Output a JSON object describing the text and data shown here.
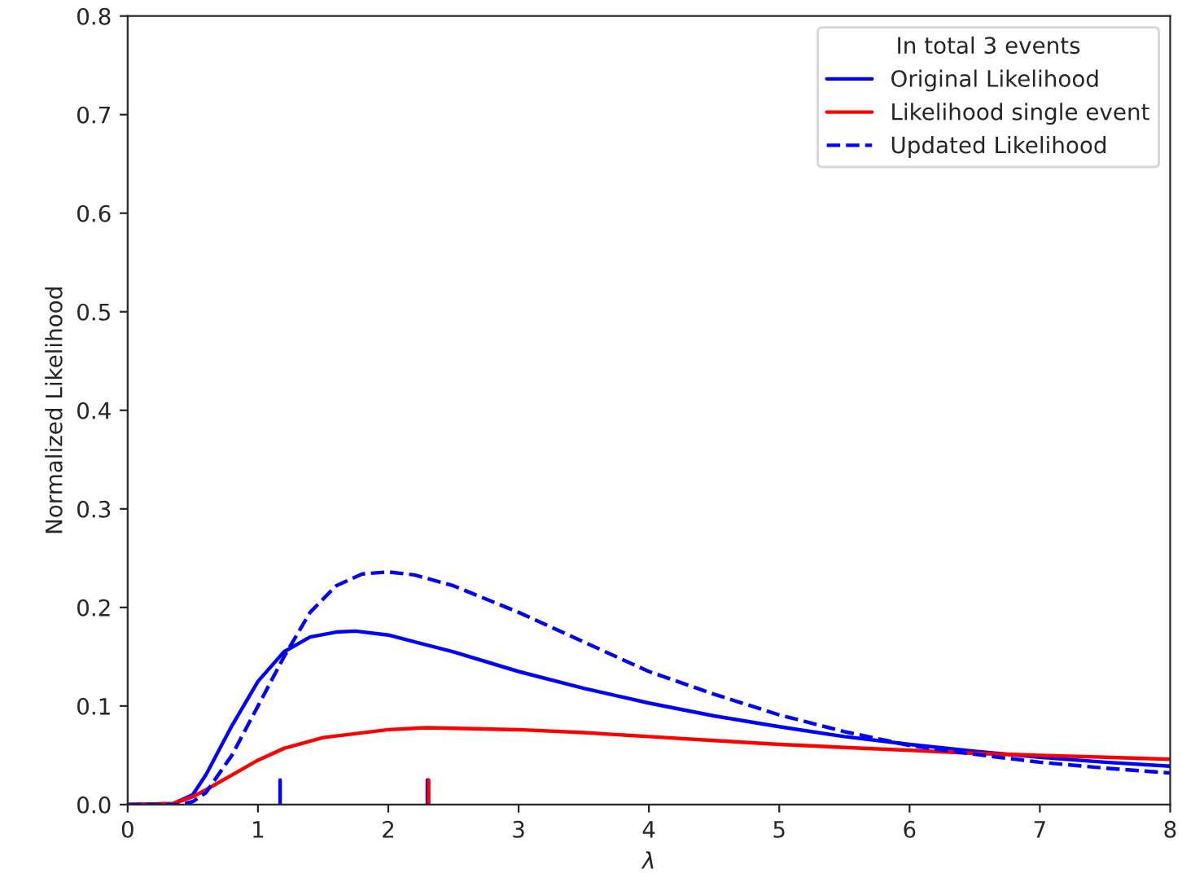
{
  "chart_data": {
    "type": "line",
    "xlabel": "λ",
    "ylabel": "Normalized Likelihood",
    "legend_title": "In total 3 events",
    "legend": "top right",
    "grid": false,
    "xlim": [
      0,
      8
    ],
    "ylim": [
      0,
      0.8
    ],
    "xticks": [
      0,
      1,
      2,
      3,
      4,
      5,
      6,
      7,
      8
    ],
    "yticks": [
      {
        "value": 0,
        "label": "0.0"
      },
      0.1,
      0.2,
      0.3,
      0.4,
      0.5,
      0.6,
      0.7,
      0.8
    ],
    "series": [
      {
        "name": "Original Likelihood",
        "color": "#0000ff",
        "line_style": "solid",
        "x": [
          0,
          0.35,
          0.5,
          0.6,
          0.8,
          1.0,
          1.2,
          1.4,
          1.6,
          1.75,
          2.0,
          2.5,
          3.0,
          3.5,
          4.0,
          4.5,
          5.0,
          5.5,
          6.0,
          6.5,
          7.0,
          7.5,
          8.0
        ],
        "values": [
          0,
          0.001,
          0.01,
          0.03,
          0.08,
          0.125,
          0.155,
          0.17,
          0.175,
          0.176,
          0.172,
          0.155,
          0.135,
          0.118,
          0.103,
          0.09,
          0.079,
          0.069,
          0.061,
          0.054,
          0.048,
          0.043,
          0.039
        ]
      },
      {
        "name": "Likelihood single event",
        "color": "#ff0000",
        "line_style": "solid",
        "x": [
          0,
          0.35,
          0.5,
          0.6,
          0.8,
          1.0,
          1.2,
          1.5,
          2.0,
          2.3,
          3.0,
          3.5,
          4.0,
          4.5,
          5.0,
          5.5,
          6.0,
          6.5,
          7.0,
          7.5,
          8.0
        ],
        "values": [
          0,
          0.001,
          0.008,
          0.015,
          0.03,
          0.045,
          0.057,
          0.068,
          0.076,
          0.078,
          0.076,
          0.073,
          0.069,
          0.065,
          0.061,
          0.058,
          0.055,
          0.052,
          0.05,
          0.048,
          0.046
        ]
      },
      {
        "name": "Updated Likelihood",
        "color": "#0000ff",
        "line_style": "dashed",
        "x": [
          0,
          0.4,
          0.5,
          0.6,
          0.8,
          1.0,
          1.2,
          1.4,
          1.6,
          1.8,
          2.0,
          2.2,
          2.5,
          3.0,
          3.5,
          4.0,
          4.5,
          5.0,
          5.5,
          6.0,
          6.5,
          7.0,
          7.5,
          8.0
        ],
        "values": [
          0,
          0,
          0.003,
          0.012,
          0.05,
          0.1,
          0.15,
          0.195,
          0.222,
          0.234,
          0.236,
          0.233,
          0.222,
          0.195,
          0.165,
          0.135,
          0.112,
          0.091,
          0.074,
          0.06,
          0.051,
          0.043,
          0.037,
          0.032
        ]
      },
      {
        "color": "#0000ff",
        "line_style": "solid",
        "x": [
          1.17,
          1.17
        ],
        "values": [
          0,
          0.025
        ]
      },
      {
        "color": "#0000ff",
        "line_style": "solid",
        "x": [
          2.3,
          2.3
        ],
        "values": [
          0,
          0.025
        ]
      },
      {
        "color": "#ff0000",
        "line_style": "solid",
        "x": [
          2.31,
          2.31
        ],
        "values": [
          0,
          0.025
        ]
      }
    ]
  }
}
